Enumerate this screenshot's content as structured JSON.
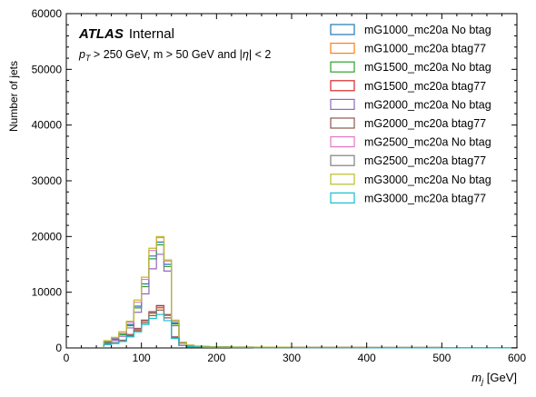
{
  "chart_data": {
    "type": "histogram-step",
    "xlabel_main": "m",
    "xlabel_sub": "j",
    "xlabel_unit": " [GeV]",
    "ylabel": "Number of jets",
    "xlim": [
      0,
      600
    ],
    "ylim": [
      0,
      60000
    ],
    "x_ticks": [
      0,
      100,
      200,
      300,
      400,
      500,
      600
    ],
    "y_ticks": [
      0,
      10000,
      20000,
      30000,
      40000,
      50000,
      60000
    ],
    "grid": false,
    "legend_position": "top-right",
    "annotation": {
      "atlas": "ATLAS",
      "status": "Internal",
      "cut_p": "p",
      "cut_sub": "T",
      "cut_rest_1": " > 250 GeV, m > 50 GeV and |",
      "cut_eta": "η",
      "cut_rest_2": "| < 2"
    },
    "bin_edges": [
      50,
      60,
      70,
      80,
      90,
      100,
      110,
      120,
      130,
      140,
      150,
      160,
      170,
      180,
      190,
      200,
      220,
      250,
      300,
      400,
      500,
      600
    ],
    "series": [
      {
        "name": "mG1000_mc20a No btag",
        "color": "#1f77b4",
        "values": [
          1100,
          1600,
          2500,
          4200,
          7500,
          11500,
          16500,
          19000,
          15000,
          4500,
          900,
          450,
          300,
          250,
          200,
          180,
          150,
          120,
          100,
          80,
          60
        ]
      },
      {
        "name": "mG1000_mc20a btag77",
        "color": "#ff7f0e",
        "values": [
          700,
          900,
          1300,
          2300,
          3300,
          4800,
          6200,
          7200,
          5800,
          1900,
          450,
          250,
          180,
          140,
          120,
          110,
          90,
          70,
          60,
          50,
          40
        ]
      },
      {
        "name": "mG1500_mc20a No btag",
        "color": "#2ca02c",
        "values": [
          1050,
          1550,
          2400,
          4000,
          7200,
          11000,
          16000,
          18500,
          14600,
          4300,
          900,
          450,
          300,
          250,
          200,
          180,
          150,
          120,
          100,
          80,
          60
        ]
      },
      {
        "name": "mG1500_mc20a btag77",
        "color": "#d62728",
        "values": [
          750,
          950,
          1400,
          2400,
          3500,
          5000,
          6500,
          7600,
          6000,
          2000,
          480,
          260,
          190,
          150,
          130,
          115,
          95,
          75,
          65,
          55,
          45
        ]
      },
      {
        "name": "mG2000_mc20a No btag",
        "color": "#9467bd",
        "values": [
          900,
          1350,
          2100,
          3600,
          6400,
          9700,
          14200,
          16800,
          13800,
          4000,
          850,
          420,
          280,
          230,
          190,
          170,
          140,
          110,
          95,
          75,
          55
        ]
      },
      {
        "name": "mG2000_mc20a btag77",
        "color": "#8c564b",
        "values": [
          650,
          850,
          1250,
          2150,
          3100,
          4500,
          5800,
          6800,
          5400,
          1800,
          430,
          240,
          170,
          135,
          115,
          105,
          85,
          65,
          55,
          45,
          35
        ]
      },
      {
        "name": "mG2500_mc20a No btag",
        "color": "#e377c2",
        "values": [
          1250,
          1800,
          2800,
          4600,
          8200,
          12300,
          17500,
          19800,
          15600,
          4800,
          1000,
          500,
          330,
          270,
          220,
          190,
          160,
          130,
          110,
          85,
          65
        ]
      },
      {
        "name": "mG2500_mc20a btag77",
        "color": "#7f7f7f",
        "values": [
          700,
          900,
          1300,
          2300,
          3400,
          4900,
          6300,
          7300,
          5900,
          1950,
          460,
          255,
          185,
          145,
          125,
          112,
          92,
          72,
          62,
          52,
          42
        ]
      },
      {
        "name": "mG3000_mc20a No btag",
        "color": "#bcbd22",
        "values": [
          1300,
          1900,
          2900,
          4800,
          8600,
          12700,
          17900,
          20000,
          15800,
          5000,
          1050,
          520,
          340,
          280,
          230,
          200,
          170,
          140,
          115,
          90,
          70
        ]
      },
      {
        "name": "mG3000_mc20a btag77",
        "color": "#17becf",
        "values": [
          600,
          800,
          1150,
          2000,
          2900,
          4200,
          5300,
          6000,
          4900,
          1700,
          420,
          230,
          165,
          130,
          110,
          100,
          80,
          60,
          50,
          42,
          32
        ]
      }
    ]
  }
}
